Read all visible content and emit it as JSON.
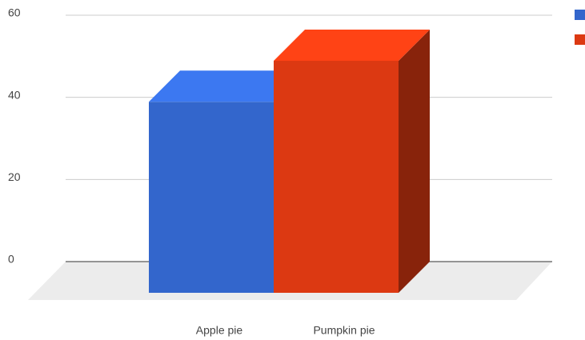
{
  "chart_data": {
    "type": "bar3d",
    "categories": [
      "Apple pie",
      "Pumpkin pie"
    ],
    "values": [
      46.5,
      56.5
    ],
    "colors": [
      "#3366cc",
      "#dc3912"
    ],
    "ylim": [
      0,
      60
    ],
    "yticks": [
      0,
      20,
      40,
      60
    ],
    "grid": true,
    "legend": "top-right"
  }
}
